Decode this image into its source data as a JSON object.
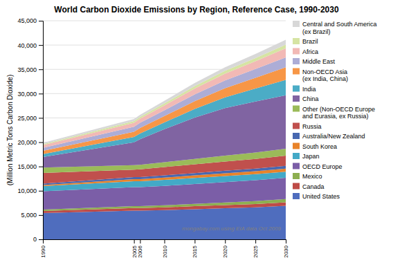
{
  "chart_data": {
    "type": "area",
    "stacked": true,
    "title": "World Carbon Dioxide Emissions by Region, Reference Case, 1990-2030",
    "y_label": "(Million Metric Tons Carbon Dioxide)",
    "annotation": "mongabay.com using EIA data Oct 2009",
    "x": [
      1990,
      2005,
      2006,
      2010,
      2015,
      2020,
      2025,
      2030
    ],
    "series": [
      {
        "name": "United States",
        "color": "#4F6DBE",
        "values": [
          5400,
          5900,
          5900,
          6000,
          6200,
          6400,
          6600,
          6900
        ]
      },
      {
        "name": "Canada",
        "color": "#BE4B47",
        "values": [
          430,
          560,
          560,
          580,
          620,
          650,
          680,
          720
        ]
      },
      {
        "name": "Mexico",
        "color": "#8DAF50",
        "values": [
          280,
          380,
          380,
          420,
          480,
          540,
          600,
          660
        ]
      },
      {
        "name": "OECD Europe",
        "color": "#7B5EA7",
        "values": [
          3800,
          3900,
          3900,
          4000,
          4100,
          4200,
          4300,
          4400
        ]
      },
      {
        "name": "Japan",
        "color": "#43A9C7",
        "values": [
          1050,
          1220,
          1220,
          1230,
          1230,
          1240,
          1240,
          1250
        ]
      },
      {
        "name": "South Korea",
        "color": "#E8832A",
        "values": [
          230,
          440,
          440,
          480,
          530,
          570,
          590,
          620
        ]
      },
      {
        "name": "Australia/New Zealand",
        "color": "#4868B0",
        "values": [
          270,
          430,
          430,
          460,
          490,
          520,
          550,
          590
        ]
      },
      {
        "name": "Russia",
        "color": "#C0504D",
        "values": [
          2200,
          1530,
          1580,
          1700,
          1800,
          1900,
          2000,
          2100
        ]
      },
      {
        "name": "Other (Non-OECD Europe\nand Eurasia, ex Russia)",
        "color": "#9BBB59",
        "values": [
          1100,
          900,
          920,
          1000,
          1100,
          1200,
          1300,
          1400
        ]
      },
      {
        "name": "China",
        "color": "#8064A2",
        "values": [
          2200,
          4700,
          5300,
          6800,
          8500,
          9800,
          10500,
          11000
        ]
      },
      {
        "name": "India",
        "color": "#4BACC6",
        "values": [
          580,
          1100,
          1150,
          1400,
          1800,
          2200,
          2700,
          3200
        ]
      },
      {
        "name": "Non-OECD Asia\n(ex India, China)",
        "color": "#F79646",
        "values": [
          700,
          1100,
          1150,
          1300,
          1600,
          1900,
          2200,
          2600
        ]
      },
      {
        "name": "Middle East",
        "color": "#ADADD6",
        "values": [
          600,
          1000,
          1050,
          1200,
          1400,
          1600,
          1800,
          2000
        ]
      },
      {
        "name": "Africa",
        "color": "#F2B9B5",
        "values": [
          550,
          850,
          870,
          1000,
          1200,
          1400,
          1600,
          1900
        ]
      },
      {
        "name": "Brazil",
        "color": "#D6E4A3",
        "values": [
          190,
          330,
          340,
          400,
          500,
          580,
          660,
          750
        ]
      },
      {
        "name": "Central and South America\n(ex Brazil)",
        "color": "#D8D8D8",
        "values": [
          270,
          430,
          440,
          530,
          640,
          740,
          860,
          980
        ]
      }
    ],
    "xlim": [
      1990,
      2030
    ],
    "ylim": [
      0,
      45000
    ],
    "xticks": [
      1990,
      2005,
      2006,
      2010,
      2015,
      2020,
      2025,
      2030
    ],
    "yticks": [
      0,
      {
        "value": 5000,
        "label": "5,000"
      },
      {
        "value": 10000,
        "label": "10,000"
      },
      {
        "value": 15000,
        "label": "15,000"
      },
      {
        "value": 20000,
        "label": "20,000"
      },
      {
        "value": 25000,
        "label": "25,000"
      },
      {
        "value": 30000,
        "label": "30,000"
      },
      {
        "value": 35000,
        "label": "35,000"
      },
      {
        "value": 40000,
        "label": "40,000"
      },
      {
        "value": 45000,
        "label": "45,000"
      }
    ],
    "grid": true,
    "legend": "right"
  }
}
